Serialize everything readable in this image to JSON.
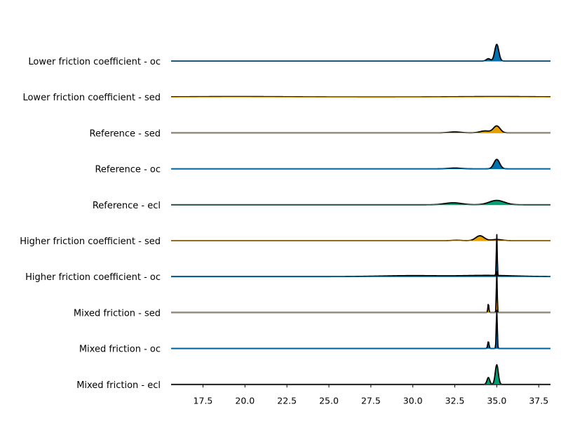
{
  "chart_data": {
    "type": "area",
    "subtype": "ridgeline",
    "xlim": [
      15.6,
      38.2
    ],
    "x_ticks": [
      17.5,
      20.0,
      22.5,
      25.0,
      27.5,
      30.0,
      32.5,
      35.0,
      37.5
    ],
    "x_tick_labels": [
      "17.5",
      "20.0",
      "22.5",
      "25.0",
      "27.5",
      "30.0",
      "32.5",
      "35.0",
      "37.5"
    ],
    "grid": false,
    "rows": [
      {
        "label": "Lower friction coefficient - oc",
        "color": "#0072b2",
        "peaks": [
          {
            "center": 34.5,
            "width": 0.12,
            "height": 0.12
          },
          {
            "center": 35.0,
            "width": 0.12,
            "height": 0.85
          }
        ]
      },
      {
        "label": "Lower friction coefficient - sed",
        "color": "#e69f00",
        "peaks": [
          {
            "center": 19.5,
            "width": 3.0,
            "height": 0.02
          },
          {
            "center": 35.0,
            "width": 2.5,
            "height": 0.02
          }
        ]
      },
      {
        "label": "Reference - sed",
        "color": "#e69f00",
        "peaks": [
          {
            "center": 32.5,
            "width": 0.35,
            "height": 0.05
          },
          {
            "center": 34.3,
            "width": 0.3,
            "height": 0.1
          },
          {
            "center": 35.0,
            "width": 0.2,
            "height": 0.35
          }
        ]
      },
      {
        "label": "Reference - oc",
        "color": "#0072b2",
        "peaks": [
          {
            "center": 32.5,
            "width": 0.35,
            "height": 0.04
          },
          {
            "center": 35.0,
            "width": 0.17,
            "height": 0.48
          }
        ]
      },
      {
        "label": "Reference - ecl",
        "color": "#009e73",
        "peaks": [
          {
            "center": 32.4,
            "width": 0.5,
            "height": 0.1
          },
          {
            "center": 35.0,
            "width": 0.45,
            "height": 0.22
          }
        ]
      },
      {
        "label": "Higher friction coefficient - sed",
        "color": "#e69f00",
        "peaks": [
          {
            "center": 32.6,
            "width": 0.25,
            "height": 0.02
          },
          {
            "center": 34.0,
            "width": 0.25,
            "height": 0.25
          },
          {
            "center": 35.0,
            "width": 0.3,
            "height": 0.06
          }
        ]
      },
      {
        "label": "Higher friction coefficient - oc",
        "color": "#0072b2",
        "peaks": [
          {
            "center": 30.0,
            "width": 1.8,
            "height": 0.05
          },
          {
            "center": 34.5,
            "width": 1.5,
            "height": 0.06
          },
          {
            "center": 35.0,
            "width": 0.025,
            "height": 2.1
          }
        ]
      },
      {
        "label": "Mixed friction - sed",
        "color": "#e69f00",
        "peaks": [
          {
            "center": 34.5,
            "width": 0.03,
            "height": 0.45
          },
          {
            "center": 35.0,
            "width": 0.025,
            "height": 2.1
          }
        ]
      },
      {
        "label": "Mixed friction - oc",
        "color": "#0072b2",
        "peaks": [
          {
            "center": 34.5,
            "width": 0.04,
            "height": 0.35
          },
          {
            "center": 35.0,
            "width": 0.03,
            "height": 1.95
          }
        ]
      },
      {
        "label": "Mixed friction - ecl",
        "color": "#009e73",
        "peaks": [
          {
            "center": 34.5,
            "width": 0.08,
            "height": 0.35
          },
          {
            "center": 35.0,
            "width": 0.09,
            "height": 1.0
          }
        ]
      }
    ]
  }
}
